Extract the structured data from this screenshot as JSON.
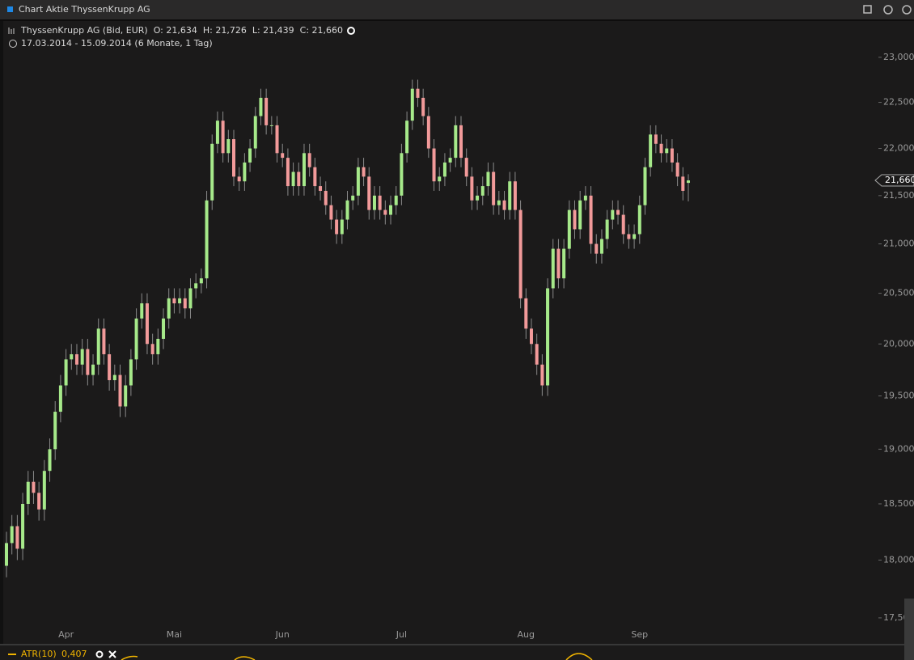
{
  "window": {
    "title": "Chart Aktie ThyssenKrupp AG"
  },
  "chart_data": {
    "type": "candlestick",
    "title": "ThyssenKrupp AG (Bid, EUR)  O: 21,634  H: 21,726  L: 21,439  C: 21,660",
    "subtitle": "17.03.2014 - 15.09.2014 (6 Monate, 1 Tag)",
    "up_color": "#a6e98a",
    "down_color": "#f29a9a",
    "log_scale": true,
    "categories": [
      null,
      null,
      null,
      null,
      null,
      null,
      null,
      null,
      null,
      null,
      null,
      "Apr",
      null,
      null,
      null,
      null,
      null,
      null,
      null,
      null,
      null,
      null,
      null,
      null,
      null,
      null,
      null,
      null,
      null,
      null,
      null,
      "Mai",
      null,
      null,
      null,
      null,
      null,
      null,
      null,
      null,
      null,
      null,
      null,
      null,
      null,
      null,
      null,
      null,
      null,
      null,
      null,
      "Jun",
      null,
      null,
      null,
      null,
      null,
      null,
      null,
      null,
      null,
      null,
      null,
      null,
      null,
      null,
      null,
      null,
      null,
      null,
      null,
      null,
      null,
      "Jul",
      null,
      null,
      null,
      null,
      null,
      null,
      null,
      null,
      null,
      null,
      null,
      null,
      null,
      null,
      null,
      null,
      null,
      null,
      null,
      null,
      null,
      null,
      "Aug",
      null,
      null,
      null,
      null,
      null,
      null,
      null,
      null,
      null,
      null,
      null,
      null,
      null,
      null,
      null,
      null,
      null,
      null,
      null,
      null,
      "Sep",
      null,
      null,
      null,
      null,
      null,
      null,
      null,
      null,
      null
    ],
    "open": [
      17950,
      18150,
      18300,
      18100,
      18500,
      18700,
      18600,
      18450,
      18800,
      19000,
      19350,
      19600,
      19850,
      19900,
      19800,
      19950,
      19700,
      19800,
      20150,
      19900,
      19650,
      19700,
      19400,
      19600,
      19850,
      20250,
      20400,
      20000,
      19900,
      20050,
      20250,
      20450,
      20400,
      20450,
      20350,
      20550,
      20600,
      20650,
      21450,
      22050,
      22300,
      21950,
      22100,
      21700,
      21650,
      21850,
      22000,
      22350,
      22550,
      22250,
      22250,
      21950,
      21900,
      21600,
      21750,
      21600,
      21950,
      21800,
      21600,
      21550,
      21400,
      21250,
      21100,
      21250,
      21450,
      21500,
      21800,
      21700,
      21350,
      21500,
      21350,
      21300,
      21400,
      21500,
      21950,
      22300,
      22650,
      22550,
      22350,
      22000,
      21650,
      21700,
      21850,
      21900,
      22250,
      21900,
      21700,
      21450,
      21500,
      21600,
      21750,
      21400,
      21450,
      21350,
      21650,
      21350,
      20450,
      20150,
      20000,
      19800,
      19600,
      20550,
      20950,
      20650,
      20950,
      21350,
      21150,
      21450,
      21500,
      21000,
      20900,
      21050,
      21250,
      21350,
      21300,
      21100,
      21050,
      21100,
      21400,
      21800,
      22150,
      22050,
      21950,
      22000,
      21850,
      21700,
      21634
    ],
    "high": [
      18250,
      18400,
      18400,
      18600,
      18800,
      18800,
      18700,
      18900,
      19100,
      19450,
      19700,
      19950,
      20000,
      20000,
      20050,
      20050,
      19900,
      20250,
      20250,
      20000,
      19800,
      19800,
      19700,
      19950,
      20350,
      20500,
      20500,
      20100,
      20150,
      20350,
      20550,
      20550,
      20550,
      20550,
      20650,
      20700,
      20750,
      21550,
      22150,
      22400,
      22400,
      22200,
      22200,
      21800,
      21950,
      22100,
      22450,
      22650,
      22650,
      22350,
      22350,
      22050,
      22000,
      21850,
      21850,
      22050,
      22050,
      21900,
      21700,
      21650,
      21500,
      21350,
      21350,
      21550,
      21600,
      21900,
      21900,
      21800,
      21600,
      21600,
      21450,
      21500,
      21600,
      22050,
      22400,
      22750,
      22750,
      22650,
      22450,
      22100,
      21800,
      21950,
      22000,
      22350,
      22350,
      22000,
      21800,
      21600,
      21700,
      21850,
      21850,
      21550,
      21550,
      21750,
      21750,
      21450,
      20550,
      20250,
      20100,
      19900,
      20650,
      21050,
      21050,
      21050,
      21450,
      21450,
      21550,
      21600,
      21600,
      21100,
      21150,
      21350,
      21450,
      21450,
      21400,
      21200,
      21200,
      21500,
      21900,
      22250,
      22250,
      22150,
      22100,
      22100,
      21950,
      21800,
      21726
    ],
    "low": [
      17850,
      18050,
      18000,
      18000,
      18400,
      18500,
      18350,
      18350,
      18700,
      18900,
      19250,
      19500,
      19750,
      19700,
      19700,
      19600,
      19600,
      19700,
      19800,
      19550,
      19550,
      19300,
      19300,
      19500,
      19750,
      20150,
      19900,
      19800,
      19800,
      19950,
      20150,
      20300,
      20300,
      20250,
      20250,
      20450,
      20500,
      20550,
      21350,
      21950,
      21850,
      21850,
      21600,
      21550,
      21550,
      21750,
      21900,
      22250,
      22150,
      22150,
      21850,
      21800,
      21500,
      21500,
      21500,
      21500,
      21700,
      21500,
      21450,
      21300,
      21150,
      21000,
      21000,
      21150,
      21350,
      21400,
      21600,
      21250,
      21250,
      21250,
      21200,
      21200,
      21300,
      21400,
      21850,
      22200,
      22450,
      22250,
      21900,
      21550,
      21550,
      21600,
      21750,
      21800,
      21800,
      21600,
      21350,
      21350,
      21400,
      21500,
      21300,
      21300,
      21250,
      21250,
      21250,
      20350,
      20050,
      19900,
      19700,
      19500,
      19500,
      20450,
      20550,
      20550,
      20850,
      21050,
      21050,
      21350,
      20900,
      20800,
      20800,
      20950,
      21150,
      21200,
      21000,
      20950,
      20950,
      21000,
      21300,
      21700,
      21950,
      21850,
      21850,
      21750,
      21600,
      21450,
      21439
    ],
    "close": [
      18150,
      18300,
      18100,
      18500,
      18700,
      18600,
      18450,
      18800,
      19000,
      19350,
      19600,
      19850,
      19900,
      19800,
      19950,
      19700,
      19800,
      20150,
      19900,
      19650,
      19700,
      19400,
      19600,
      19850,
      20250,
      20400,
      20000,
      19900,
      20050,
      20250,
      20450,
      20400,
      20450,
      20350,
      20550,
      20600,
      20650,
      21450,
      22050,
      22300,
      21950,
      22100,
      21700,
      21650,
      21850,
      22000,
      22350,
      22550,
      22250,
      22250,
      21950,
      21900,
      21600,
      21750,
      21600,
      21950,
      21800,
      21600,
      21550,
      21400,
      21250,
      21100,
      21250,
      21450,
      21500,
      21800,
      21700,
      21350,
      21500,
      21350,
      21300,
      21400,
      21500,
      21950,
      22300,
      22650,
      22550,
      22350,
      22000,
      21650,
      21700,
      21850,
      21900,
      22250,
      21900,
      21700,
      21450,
      21500,
      21600,
      21750,
      21400,
      21450,
      21350,
      21650,
      21350,
      20450,
      20150,
      20000,
      19800,
      19600,
      20550,
      20950,
      20650,
      20950,
      21350,
      21150,
      21450,
      21500,
      21000,
      20900,
      21050,
      21250,
      21350,
      21300,
      21100,
      21050,
      21100,
      21400,
      21800,
      22150,
      22050,
      21950,
      22000,
      21850,
      21700,
      21550,
      21660
    ],
    "ylim": [
      17280,
      23410
    ],
    "yticks": [
      {
        "value": 23000,
        "label": "23,000"
      },
      {
        "value": 22500,
        "label": "22,500"
      },
      {
        "value": 22000,
        "label": "22,000"
      },
      {
        "value": 21500,
        "label": "21,500"
      },
      {
        "value": 21000,
        "label": "21,000"
      },
      {
        "value": 20500,
        "label": "20,500"
      },
      {
        "value": 20000,
        "label": "20,000"
      },
      {
        "value": 19500,
        "label": "19,500"
      },
      {
        "value": 19000,
        "label": "19,000"
      },
      {
        "value": 18500,
        "label": "18,500"
      },
      {
        "value": 18000,
        "label": "18,000"
      },
      {
        "value": 17500,
        "label": "17,500"
      }
    ],
    "price_marker": {
      "value": 21660,
      "label": "21,660"
    },
    "indicator": {
      "name": "ATR(10)",
      "value": "0,407"
    }
  }
}
